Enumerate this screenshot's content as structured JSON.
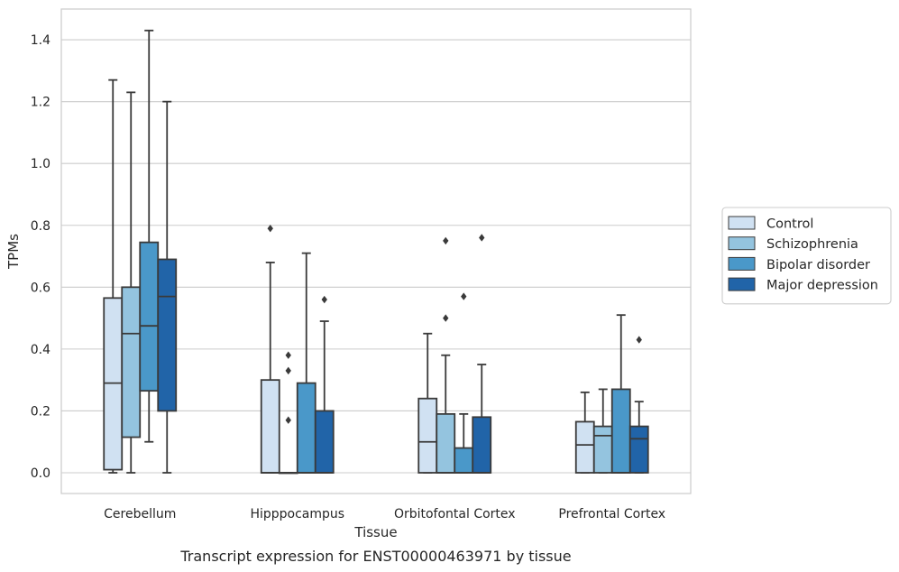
{
  "caption": "Transcript expression for ENST00000463971 by tissue",
  "chart_data": {
    "type": "box",
    "title": "",
    "xlabel": "Tissue",
    "ylabel": "TPMs",
    "ylim": [
      -0.07,
      1.5
    ],
    "yticks": [
      0.0,
      0.2,
      0.4,
      0.6,
      0.8,
      1.0,
      1.2,
      1.4
    ],
    "ytick_labels": [
      "0.0",
      "0.2",
      "0.4",
      "0.6",
      "0.8",
      "1.0",
      "1.2",
      "1.4"
    ],
    "grid": "horizontal",
    "legend_position": "right",
    "categories": [
      "Cerebellum",
      "Hipppocampus",
      "Orbitofontal Cortex",
      "Prefrontal Cortex"
    ],
    "series": [
      {
        "name": "Control",
        "color": "#d0e1f2",
        "boxes": [
          {
            "min": 0.0,
            "q1": 0.01,
            "median": 0.29,
            "q3": 0.565,
            "max": 1.27,
            "outliers": []
          },
          {
            "min": 0.0,
            "q1": 0.0,
            "median": 0.0,
            "q3": 0.3,
            "max": 0.68,
            "outliers": [
              0.79
            ]
          },
          {
            "min": 0.0,
            "q1": 0.0,
            "median": 0.1,
            "q3": 0.24,
            "max": 0.45,
            "outliers": []
          },
          {
            "min": 0.0,
            "q1": 0.0,
            "median": 0.09,
            "q3": 0.165,
            "max": 0.26,
            "outliers": []
          }
        ]
      },
      {
        "name": "Schizophrenia",
        "color": "#94c4df",
        "boxes": [
          {
            "min": 0.0,
            "q1": 0.115,
            "median": 0.45,
            "q3": 0.6,
            "max": 1.23,
            "outliers": []
          },
          {
            "min": 0.0,
            "q1": 0.0,
            "median": 0.0,
            "q3": 0.0,
            "max": 0.0,
            "outliers": [
              0.38,
              0.33,
              0.17
            ]
          },
          {
            "min": 0.0,
            "q1": 0.0,
            "median": 0.0,
            "q3": 0.19,
            "max": 0.38,
            "outliers": [
              0.75,
              0.5
            ]
          },
          {
            "min": 0.0,
            "q1": 0.0,
            "median": 0.12,
            "q3": 0.15,
            "max": 0.27,
            "outliers": []
          }
        ]
      },
      {
        "name": "Bipolar disorder",
        "color": "#4a98c9",
        "boxes": [
          {
            "min": 0.1,
            "q1": 0.265,
            "median": 0.475,
            "q3": 0.745,
            "max": 1.43,
            "outliers": []
          },
          {
            "min": 0.0,
            "q1": 0.0,
            "median": 0.0,
            "q3": 0.29,
            "max": 0.71,
            "outliers": []
          },
          {
            "min": 0.0,
            "q1": 0.0,
            "median": 0.0,
            "q3": 0.08,
            "max": 0.19,
            "outliers": [
              0.57
            ]
          },
          {
            "min": 0.0,
            "q1": 0.0,
            "median": 0.0,
            "q3": 0.27,
            "max": 0.51,
            "outliers": []
          }
        ]
      },
      {
        "name": "Major depression",
        "color": "#2164a8",
        "boxes": [
          {
            "min": 0.0,
            "q1": 0.2,
            "median": 0.57,
            "q3": 0.69,
            "max": 1.2,
            "outliers": []
          },
          {
            "min": 0.0,
            "q1": 0.0,
            "median": 0.0,
            "q3": 0.2,
            "max": 0.49,
            "outliers": [
              0.56
            ]
          },
          {
            "min": 0.0,
            "q1": 0.0,
            "median": 0.0,
            "q3": 0.18,
            "max": 0.35,
            "outliers": [
              0.76
            ]
          },
          {
            "min": 0.0,
            "q1": 0.0,
            "median": 0.11,
            "q3": 0.15,
            "max": 0.23,
            "outliers": [
              0.43
            ]
          }
        ]
      }
    ]
  }
}
